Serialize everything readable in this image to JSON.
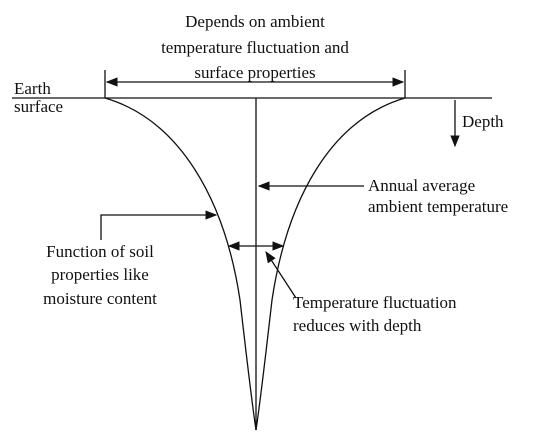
{
  "labels": {
    "top_note": [
      "Depends on ambient",
      "temperature fluctuation and",
      "surface properties"
    ],
    "earth_surface": [
      "Earth",
      "surface"
    ],
    "depth": "Depth",
    "annual_average": [
      "Annual average",
      "ambient temperature"
    ],
    "soil_function": [
      "Function of soil",
      "properties like",
      "moisture content"
    ],
    "fluctuation": [
      "Temperature fluctuation",
      "reduces with depth"
    ]
  }
}
